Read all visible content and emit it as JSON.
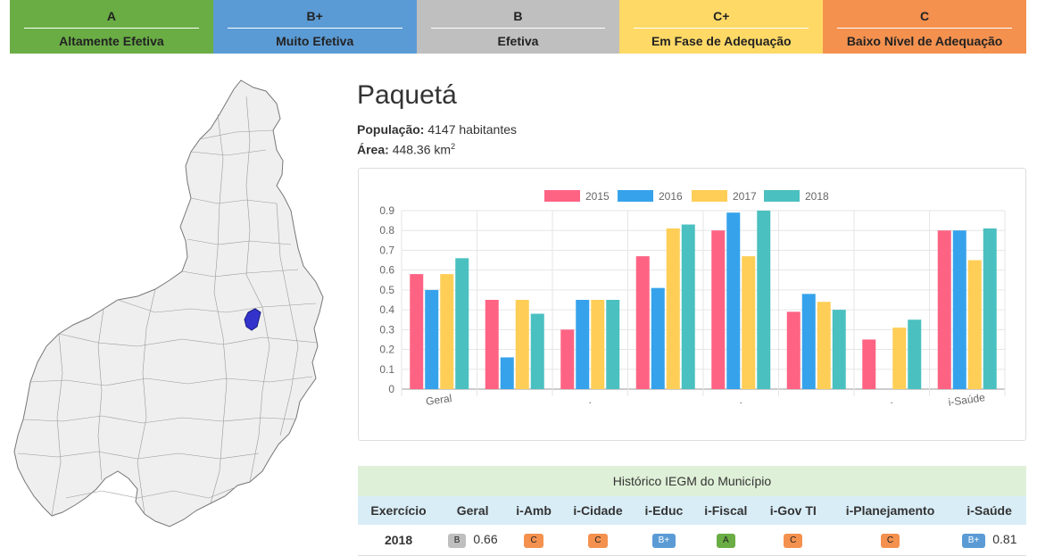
{
  "legend": [
    {
      "letter": "A",
      "desc": "Altamente Efetiva"
    },
    {
      "letter": "B+",
      "desc": "Muito Efetiva"
    },
    {
      "letter": "B",
      "desc": "Efetiva"
    },
    {
      "letter": "C+",
      "desc": "Em Fase de Adequação"
    },
    {
      "letter": "C",
      "desc": "Baixo Nível de Adequação"
    }
  ],
  "municipio": {
    "name": "Paquetá",
    "populacao_label": "População:",
    "populacao_value": "4147 habitantes",
    "area_label": "Área:",
    "area_value": "448.36 km",
    "area_unit_sup": "2"
  },
  "colors": {
    "s2015": "#ff6384",
    "s2016": "#36a2eb",
    "s2017": "#ffce56",
    "s2018": "#4bc0c0",
    "highlight": "#3333cc"
  },
  "chart_data": {
    "type": "bar",
    "categories": [
      "Geral",
      "",
      ".",
      "",
      ".",
      "",
      ".",
      "i-Saúde"
    ],
    "ylim": [
      0,
      0.9
    ],
    "yticks": [
      "0",
      "0.1",
      "0.2",
      "0.3",
      "0.4",
      "0.5",
      "0.6",
      "0.7",
      "0.8",
      "0.9"
    ],
    "grid": true,
    "legend_position": "top",
    "series": [
      {
        "name": "2015",
        "values": [
          0.58,
          0.45,
          0.3,
          0.67,
          0.8,
          0.39,
          0.25,
          0.8
        ]
      },
      {
        "name": "2016",
        "values": [
          0.5,
          0.16,
          0.45,
          0.51,
          0.89,
          0.48,
          0.0,
          0.8
        ]
      },
      {
        "name": "2017",
        "values": [
          0.58,
          0.45,
          0.45,
          0.81,
          0.67,
          0.44,
          0.31,
          0.65
        ]
      },
      {
        "name": "2018",
        "values": [
          0.66,
          0.38,
          0.45,
          0.83,
          0.9,
          0.4,
          0.35,
          0.81
        ]
      }
    ]
  },
  "historico": {
    "caption": "Histórico IEGM do Município",
    "headers": [
      "Exercício",
      "Geral",
      "i-Amb",
      "i-Cidade",
      "i-Educ",
      "i-Fiscal",
      "i-Gov TI",
      "i-Planejamento",
      "i-Saúde"
    ],
    "row": {
      "exercicio": "2018",
      "geral_badge": "B",
      "geral_value": "0.66",
      "amb_badge": "C",
      "cidade_badge": "C",
      "educ_badge": "B+",
      "fiscal_badge": "A",
      "govti_badge": "C",
      "planej_badge": "C",
      "saude_badge": "B+",
      "saude_value": "0.81"
    }
  }
}
